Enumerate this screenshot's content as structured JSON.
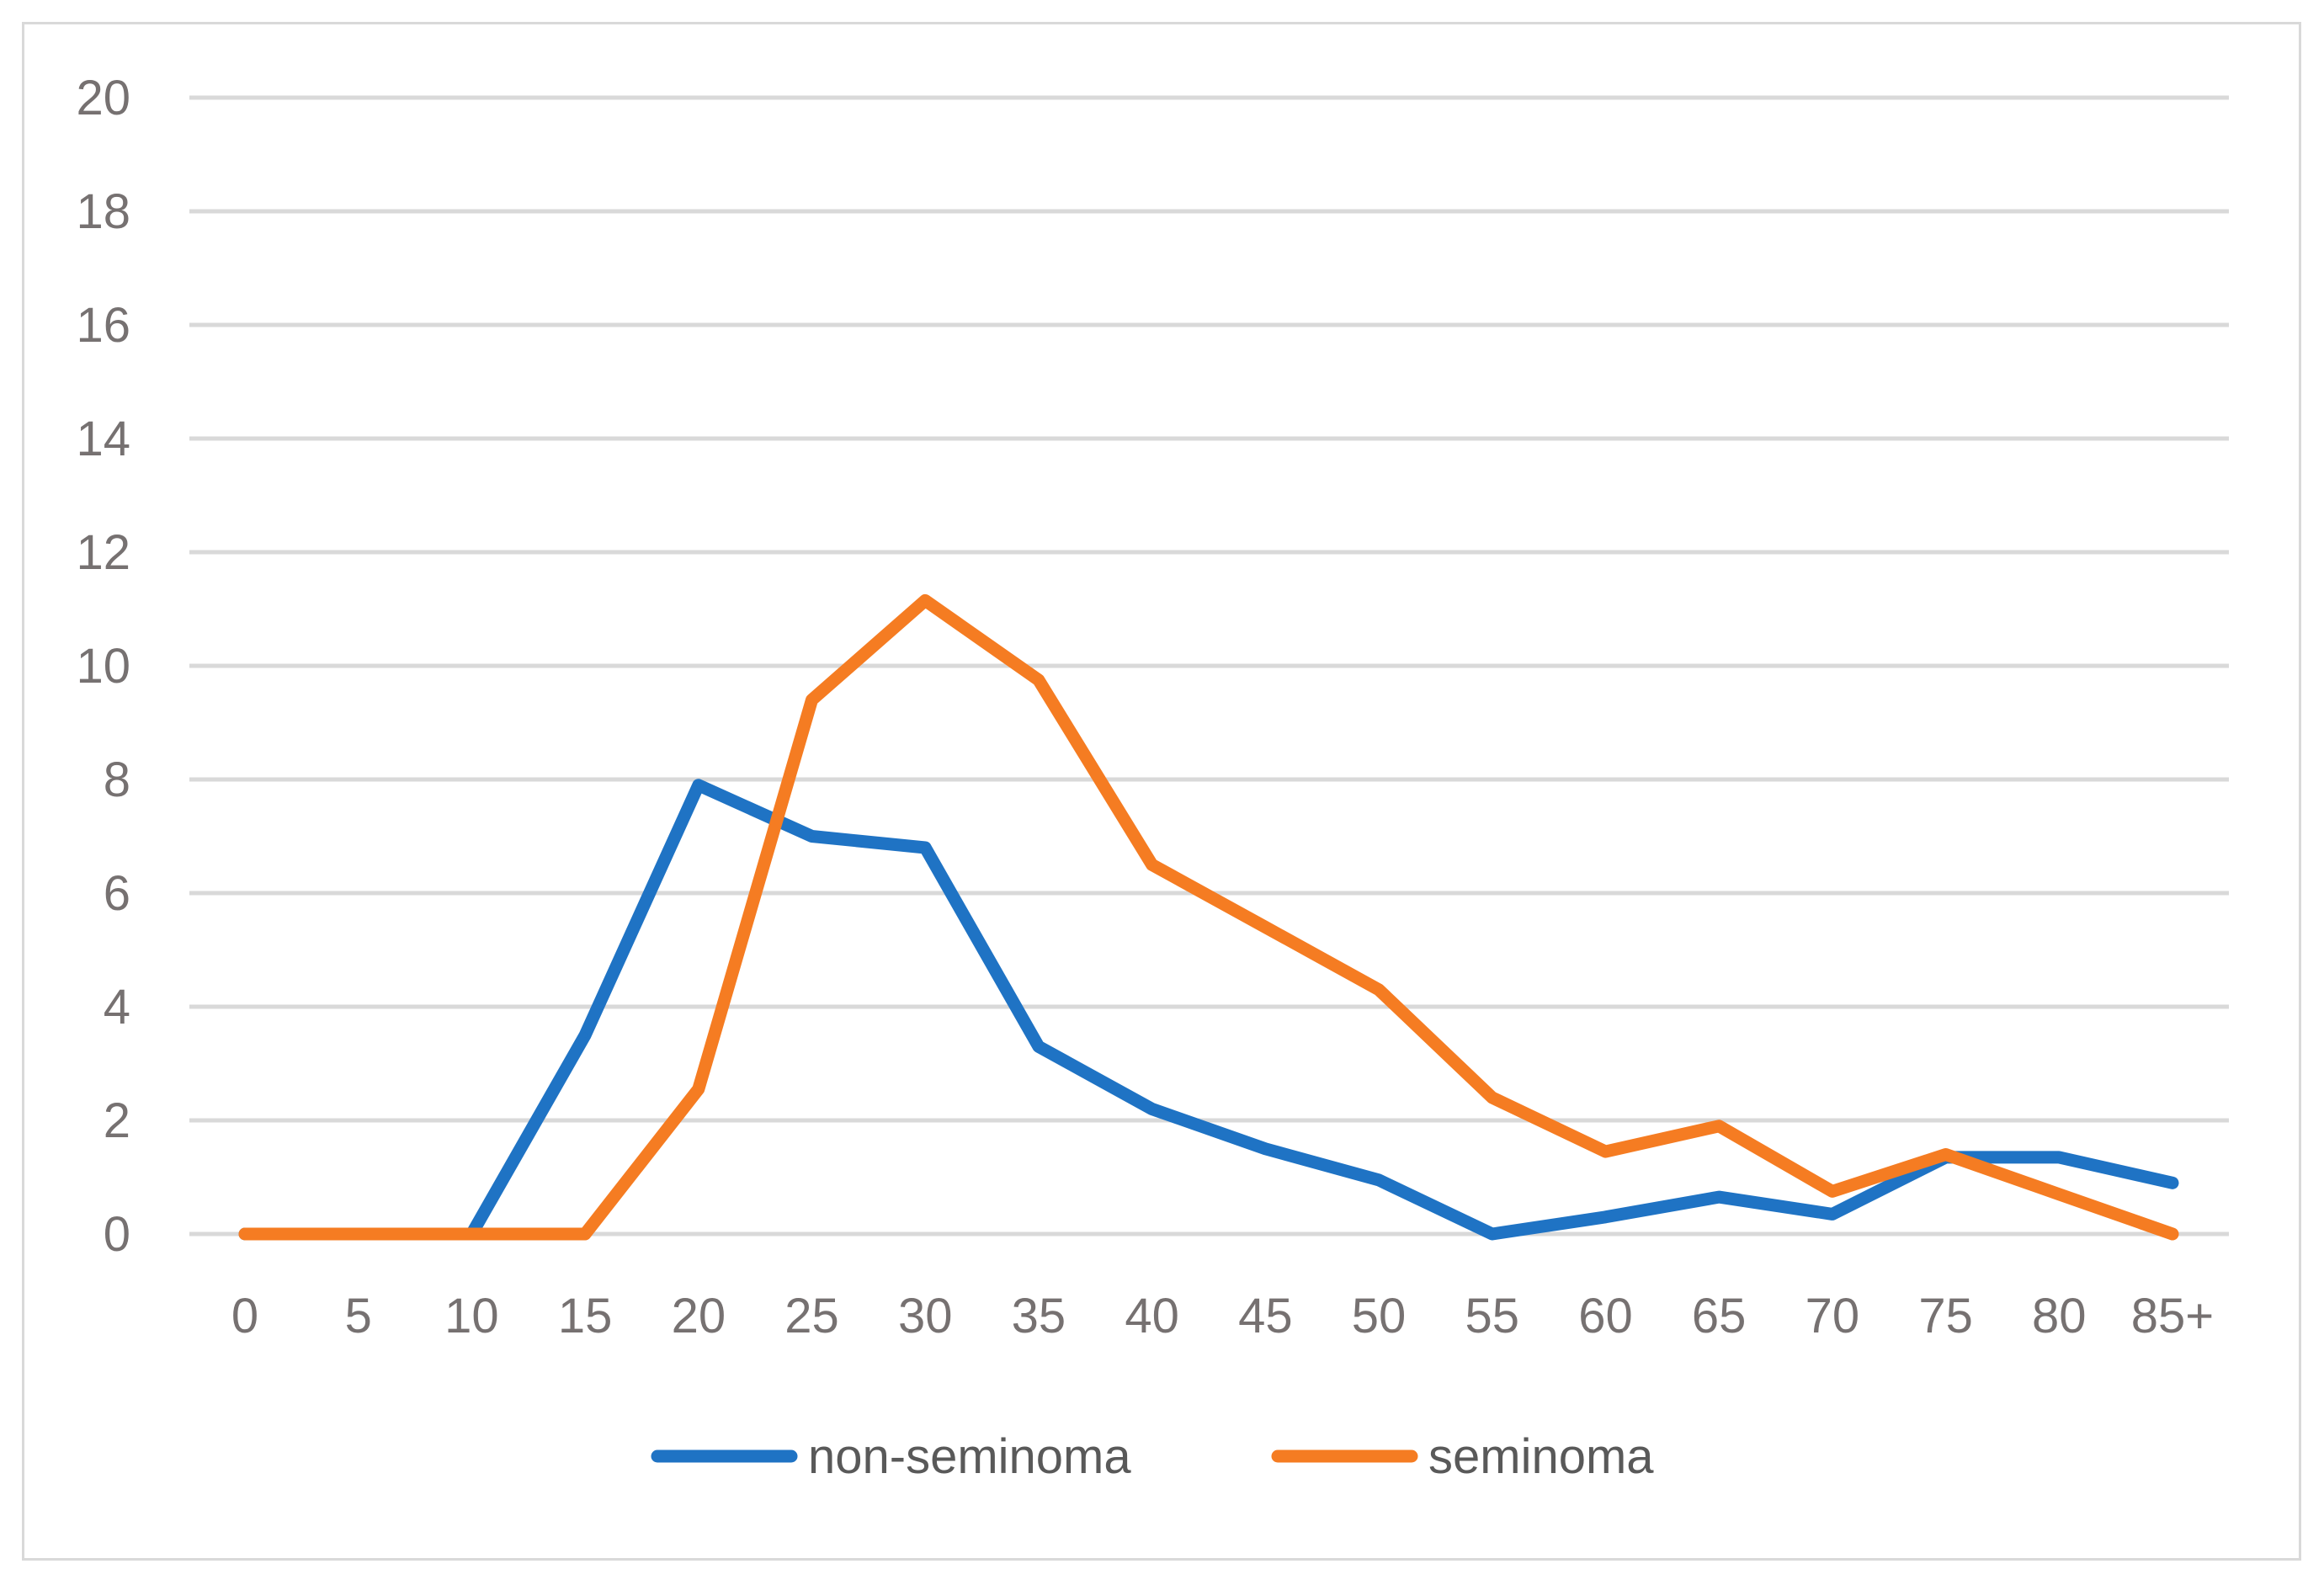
{
  "chart_data": {
    "type": "line",
    "title": "",
    "xlabel": "",
    "ylabel": "",
    "categories": [
      "0",
      "5",
      "10",
      "15",
      "20",
      "25",
      "30",
      "35",
      "40",
      "45",
      "50",
      "55",
      "60",
      "65",
      "70",
      "75",
      "80",
      "85+"
    ],
    "ylim": [
      0,
      20
    ],
    "yticks": [
      0,
      2,
      4,
      6,
      8,
      10,
      12,
      14,
      16,
      18,
      20
    ],
    "grid": true,
    "legend_position": "bottom",
    "series": [
      {
        "name": "non-seminoma",
        "color": "#1f73c4",
        "values": [
          0,
          0,
          0,
          3.5,
          7.9,
          7.0,
          6.8,
          3.3,
          2.2,
          1.5,
          0.95,
          0,
          0.3,
          0.65,
          0.35,
          1.35,
          1.35,
          0.9
        ]
      },
      {
        "name": "seminoma",
        "color": "#f57c22",
        "values": [
          0,
          0,
          0,
          0,
          2.55,
          9.4,
          11.15,
          9.75,
          6.5,
          5.4,
          4.3,
          2.4,
          1.45,
          1.9,
          0.75,
          1.4,
          0.7,
          0
        ]
      }
    ],
    "gridline_color": "#d9d9d9",
    "axis_label_color": "#767171"
  }
}
